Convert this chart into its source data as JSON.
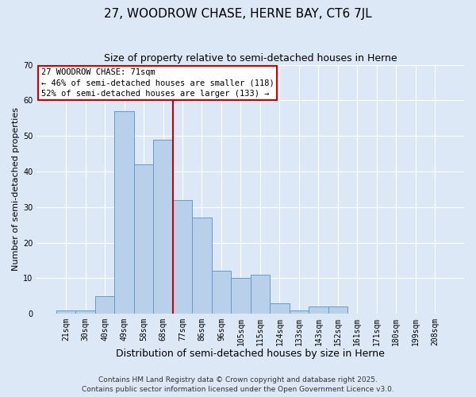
{
  "title": "27, WOODROW CHASE, HERNE BAY, CT6 7JL",
  "subtitle": "Size of property relative to semi-detached houses in Herne",
  "xlabel": "Distribution of semi-detached houses by size in Herne",
  "ylabel": "Number of semi-detached properties",
  "bar_labels": [
    "21sqm",
    "30sqm",
    "40sqm",
    "49sqm",
    "58sqm",
    "68sqm",
    "77sqm",
    "86sqm",
    "96sqm",
    "105sqm",
    "115sqm",
    "124sqm",
    "133sqm",
    "143sqm",
    "152sqm",
    "161sqm",
    "171sqm",
    "180sqm",
    "199sqm",
    "208sqm"
  ],
  "bar_values": [
    1,
    1,
    5,
    57,
    42,
    49,
    32,
    27,
    12,
    10,
    11,
    3,
    1,
    2,
    2,
    0,
    0,
    0,
    0,
    0
  ],
  "ylim": [
    0,
    70
  ],
  "yticks": [
    0,
    10,
    20,
    30,
    40,
    50,
    60,
    70
  ],
  "bar_color": "#b8d0ea",
  "bar_edge_color": "#6699cc",
  "bg_color": "#dce8f5",
  "grid_color": "#ffffff",
  "vline_x": 5.5,
  "vline_color": "#cc0000",
  "annotation_title": "27 WOODROW CHASE: 71sqm",
  "annotation_line1": "← 46% of semi-detached houses are smaller (118)",
  "annotation_line2": "52% of semi-detached houses are larger (133) →",
  "annotation_box_color": "#ffffff",
  "annotation_box_edge": "#cc0000",
  "footer1": "Contains HM Land Registry data © Crown copyright and database right 2025.",
  "footer2": "Contains public sector information licensed under the Open Government Licence v3.0.",
  "title_fontsize": 11,
  "subtitle_fontsize": 9,
  "xlabel_fontsize": 9,
  "ylabel_fontsize": 8,
  "tick_fontsize": 7,
  "annotation_fontsize": 7.5,
  "footer_fontsize": 6.5
}
